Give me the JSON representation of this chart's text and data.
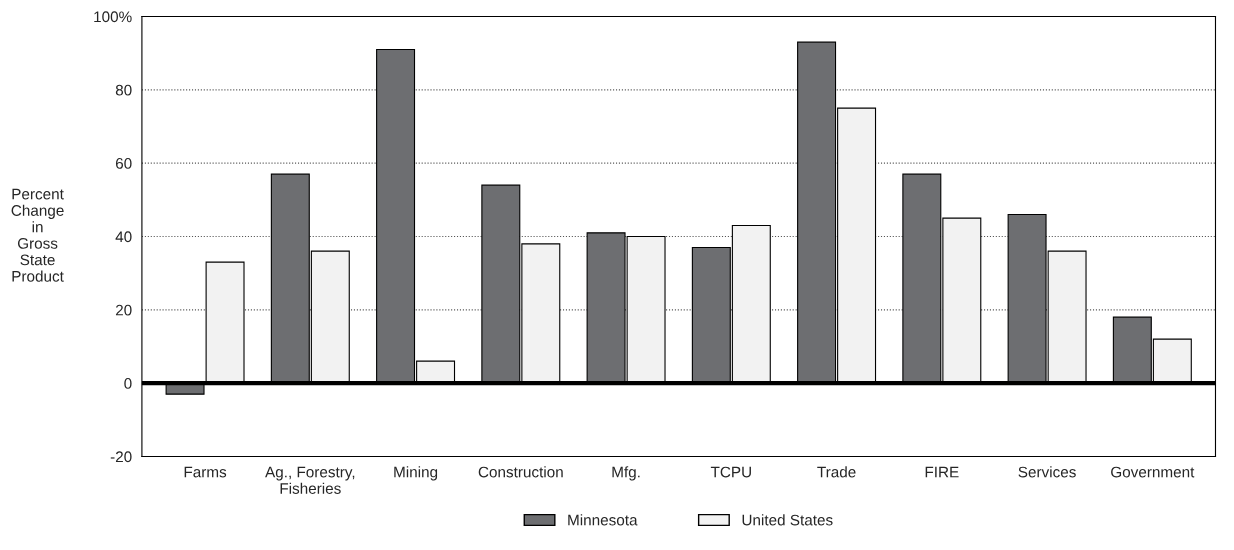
{
  "chart_data": {
    "type": "bar",
    "ylabel": "Percent\nChange\nin\nGross\nState\nProduct",
    "categories": [
      "Farms",
      "Ag., Forestry,\nFisheries",
      "Mining",
      "Construction",
      "Mfg.",
      "TCPU",
      "Trade",
      "FIRE",
      "Services",
      "Government"
    ],
    "series": [
      {
        "name": "Minnesota",
        "color": "#6d6e71",
        "values": [
          -3,
          57,
          91,
          54,
          41,
          37,
          93,
          57,
          46,
          18
        ]
      },
      {
        "name": "United States",
        "color": "#f2f2f2",
        "values": [
          33,
          36,
          6,
          38,
          40,
          43,
          75,
          45,
          36,
          12
        ]
      }
    ],
    "ylim": [
      -20,
      100
    ],
    "yticks": [
      -20,
      0,
      20,
      40,
      60,
      80,
      {
        "value": 100,
        "label": "100%"
      }
    ],
    "grid": "y",
    "legend": "bottom",
    "ref_lines": [
      {
        "axis": "y",
        "value": 0,
        "color": "#000000"
      }
    ]
  }
}
